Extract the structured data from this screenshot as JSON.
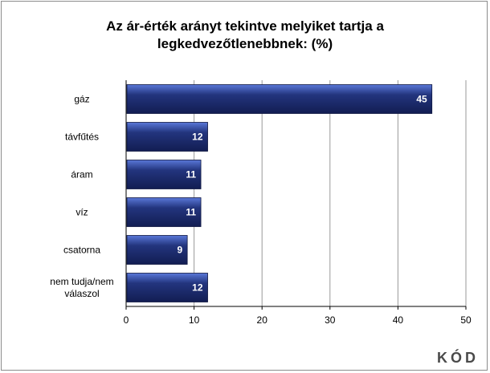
{
  "chart_data": {
    "type": "bar",
    "orientation": "horizontal",
    "title_lines": [
      "Az ár-érték arányt tekintve melyiket tartja a",
      "legkedvezőtlenebbnek: (%)"
    ],
    "categories": [
      [
        "gáz"
      ],
      [
        "távfűtés"
      ],
      [
        "áram"
      ],
      [
        "víz"
      ],
      [
        "csatorna"
      ],
      [
        "nem tudja/nem",
        "válaszol"
      ]
    ],
    "values": [
      45,
      12,
      11,
      11,
      9,
      12
    ],
    "xlim": [
      0,
      50
    ],
    "xticks": [
      0,
      10,
      20,
      30,
      40,
      50
    ],
    "grid": true,
    "bar_color": "#1f2d6b",
    "bar_color_light": "#3e5cc0"
  },
  "logo": {
    "text": "KÓD"
  }
}
